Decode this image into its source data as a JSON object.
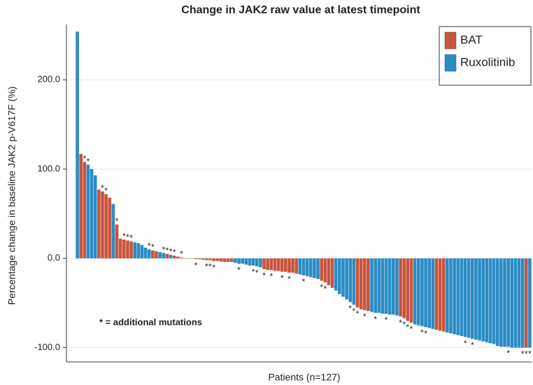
{
  "chart_data": {
    "type": "waterfall",
    "title": "Change in JAK2 raw value at latest timepoint",
    "y_label": "Percentage change in baseline JAK2 p-V617F (%)",
    "x_label": "Patients (n=127)",
    "annotation": "* = additional mutations",
    "mark_symbol": "*",
    "marked": [
      2,
      3,
      7,
      8,
      11,
      13,
      14,
      15,
      20,
      21,
      24,
      25,
      26,
      27,
      29,
      33,
      36,
      37,
      38,
      45,
      49,
      50,
      52,
      54,
      57,
      59,
      63,
      68,
      69,
      76,
      77,
      78,
      80,
      83,
      86,
      90,
      91,
      92,
      93,
      96,
      97,
      108,
      110,
      120,
      124,
      125,
      126
    ],
    "ylim": [
      -116,
      262
    ],
    "yticks": [
      {
        "value": -100,
        "label": "-100.0"
      },
      {
        "value": 0,
        "label": "0.0"
      },
      {
        "value": 100,
        "label": "100.0"
      },
      {
        "value": 200,
        "label": "200.0"
      }
    ],
    "grid": true,
    "legend": "top-right",
    "series": [
      {
        "name": "BAT",
        "color": "#c8553d",
        "values": [
          null,
          117,
          108,
          null,
          null,
          null,
          77,
          75,
          72,
          68,
          null,
          38,
          22,
          21,
          20,
          19,
          null,
          null,
          null,
          null,
          null,
          9,
          8,
          null,
          null,
          5,
          null,
          3,
          2,
          1,
          0,
          0,
          -0.5,
          -1,
          -1,
          -1.5,
          -2,
          -2,
          -3,
          -3,
          -3.5,
          -4,
          -4,
          -4,
          null,
          null,
          null,
          null,
          null,
          null,
          null,
          null,
          -12,
          -13,
          -13,
          -14,
          -14,
          -15,
          -15,
          -16,
          -16,
          -17,
          null,
          null,
          null,
          null,
          null,
          null,
          -25,
          -27,
          -30,
          -33,
          null,
          null,
          null,
          null,
          null,
          null,
          -55,
          -57,
          -58,
          -59,
          null,
          null,
          null,
          null,
          null,
          null,
          null,
          null,
          -65,
          -67,
          -70,
          -72,
          null,
          null,
          null,
          null,
          null,
          null,
          -80,
          -81,
          -82,
          null,
          null,
          null,
          null,
          null,
          null,
          null,
          null,
          null,
          null,
          null,
          null,
          null,
          null,
          null,
          null,
          null,
          null,
          null,
          null,
          null,
          null,
          -100,
          null
        ]
      },
      {
        "name": "Ruxolitinib",
        "color": "#2b8cc4",
        "values": [
          254,
          null,
          null,
          105,
          100,
          93,
          null,
          null,
          null,
          null,
          61,
          null,
          null,
          null,
          null,
          null,
          18,
          17,
          15,
          12,
          10,
          null,
          null,
          7,
          6,
          null,
          4,
          null,
          null,
          null,
          null,
          null,
          null,
          null,
          null,
          null,
          null,
          null,
          null,
          null,
          null,
          null,
          null,
          null,
          -5,
          -6,
          -6,
          -7,
          -8,
          -8,
          -9,
          -10,
          null,
          null,
          null,
          null,
          null,
          null,
          null,
          null,
          null,
          null,
          -18,
          -19,
          -20,
          -21,
          -22,
          -23,
          null,
          null,
          null,
          null,
          -36,
          -40,
          -43,
          -46,
          -49,
          -52,
          null,
          null,
          null,
          null,
          -60,
          -61,
          -61,
          -62,
          -62,
          -63,
          -63,
          -64,
          null,
          null,
          null,
          null,
          -74,
          -75,
          -76,
          -77,
          -78,
          -79,
          null,
          null,
          null,
          -83,
          -84,
          -85,
          -86,
          -87,
          -88,
          -89,
          -90,
          -91,
          -92,
          -93,
          -94,
          -95,
          -96,
          -98,
          -99,
          -99,
          -99,
          -100,
          -100,
          -100,
          -100,
          null,
          -100
        ]
      }
    ]
  }
}
